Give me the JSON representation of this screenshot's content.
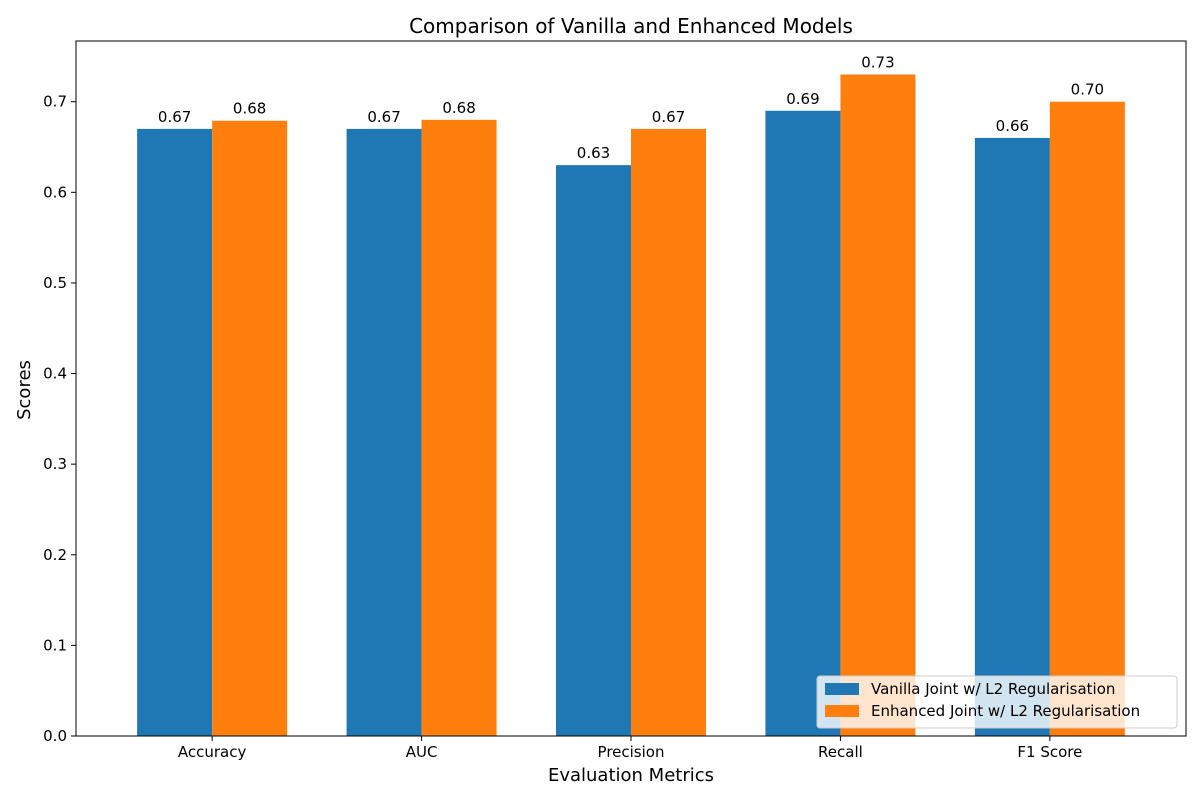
{
  "chart_data": {
    "type": "bar",
    "title": "Comparison of Vanilla and Enhanced Models",
    "xlabel": "Evaluation Metrics",
    "ylabel": "Scores",
    "categories": [
      "Accuracy",
      "AUC",
      "Precision",
      "Recall",
      "F1 Score"
    ],
    "series": [
      {
        "name": "Vanilla Joint w/ L2 Regularisation",
        "values": [
          0.67,
          0.67,
          0.63,
          0.69,
          0.66
        ],
        "labels": [
          "0.67",
          "0.67",
          "0.63",
          "0.69",
          "0.66"
        ],
        "color": "#1f77b4"
      },
      {
        "name": "Enhanced Joint w/ L2 Regularisation",
        "values": [
          0.679,
          0.68,
          0.67,
          0.73,
          0.7
        ],
        "labels": [
          "0.68",
          "0.68",
          "0.67",
          "0.73",
          "0.70"
        ],
        "color": "#ff7f0e"
      }
    ],
    "ylim": [
      0,
      0.767
    ],
    "yticks": [
      "0.0",
      "0.1",
      "0.2",
      "0.3",
      "0.4",
      "0.5",
      "0.6",
      "0.7"
    ],
    "legend": "lower-right",
    "grid": false
  }
}
